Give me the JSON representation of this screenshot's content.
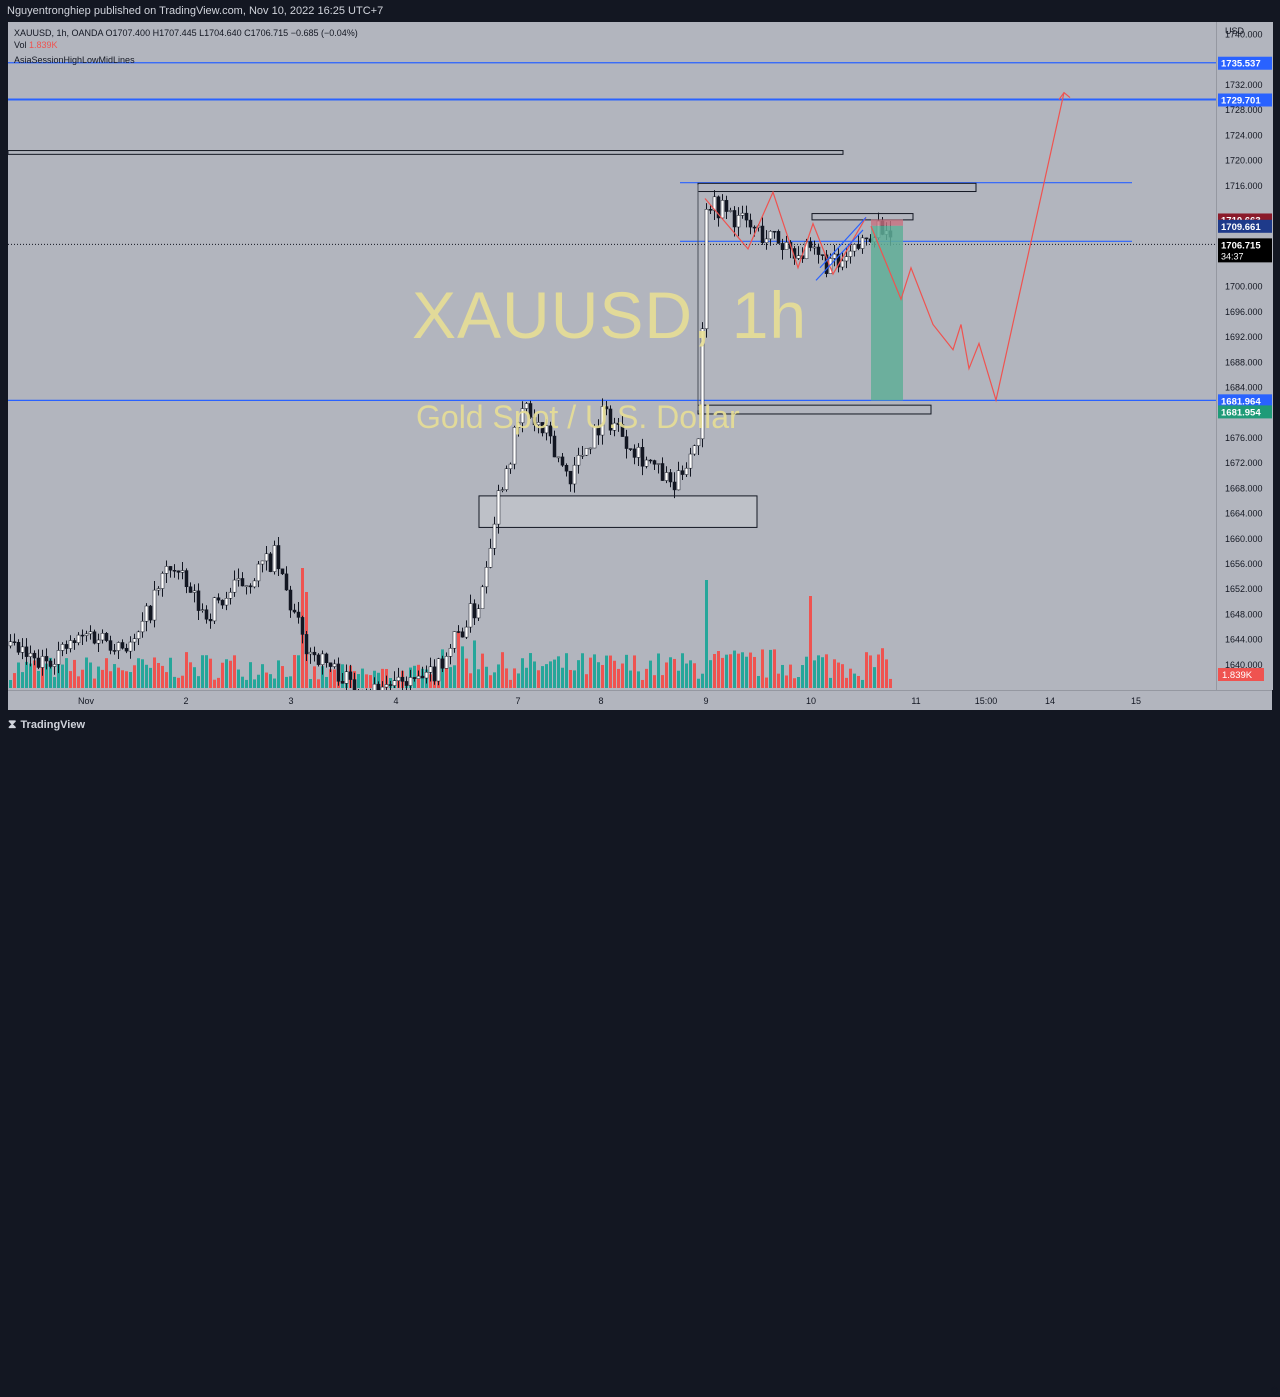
{
  "header": {
    "published": "Nguyentronghiep published on TradingView.com, Nov 10, 2022 16:25 UTC+7"
  },
  "legend": {
    "symbol_line": "XAUUSD, 1h, OANDA  O1707.400  H1707.445  L1704.640  C1706.715  −0.685 (−0.04%)",
    "vol_label": "Vol",
    "vol_value": "1.839K",
    "indicator": "AsiaSessionHighLowMidLines"
  },
  "watermark": {
    "title": "XAUUSD, 1h",
    "subtitle": "Gold Spot / U.S. Dollar"
  },
  "footer": {
    "logo": "TradingView"
  },
  "colors": {
    "background": "#b2b5be",
    "up_candle": "#ffffff",
    "down_candle": "#131722",
    "vol_up": "#26a69a",
    "vol_down": "#ef5350",
    "blue_line": "#2962ff",
    "projection": "#ef5350",
    "watermark": "#e8df96",
    "target_zone": "#5fae98",
    "stop_zone": "#c87080"
  },
  "chart_data": {
    "type": "candlestick",
    "symbol": "XAUUSD",
    "timeframe": "1h",
    "exchange": "OANDA",
    "currency": "USD",
    "ylim": [
      1636,
      1742
    ],
    "y_ticks": [
      "1740.000",
      "1732.000",
      "1728.000",
      "1724.000",
      "1720.000",
      "1716.000",
      "1700.000",
      "1696.000",
      "1692.000",
      "1688.000",
      "1684.000",
      "1676.000",
      "1672.000",
      "1668.000",
      "1664.000",
      "1660.000",
      "1656.000",
      "1652.000",
      "1648.000",
      "1644.000",
      "1640.000"
    ],
    "x_ticks": [
      "Nov",
      "2",
      "3",
      "4",
      "7",
      "8",
      "9",
      "10",
      "11",
      "15:00",
      "14",
      "15"
    ],
    "price_labels": [
      {
        "value": "1735.537",
        "kind": "line"
      },
      {
        "value": "1729.701",
        "kind": "line"
      },
      {
        "value": "1710.663",
        "kind": "stop"
      },
      {
        "value": "1709.661",
        "kind": "entry"
      },
      {
        "value": "1706.715",
        "kind": "last",
        "countdown": "34:37"
      },
      {
        "value": "1681.964",
        "kind": "line"
      },
      {
        "value": "1681.954",
        "kind": "target"
      }
    ],
    "volume_label": "1.839K",
    "last_ohlc": {
      "open": 1707.4,
      "high": 1707.445,
      "low": 1704.64,
      "close": 1706.715,
      "change": -0.685,
      "change_pct": -0.04
    },
    "path_segments": [
      {
        "x0": 0,
        "x1": 30,
        "start": 1643,
        "end": 1640,
        "amp": 3
      },
      {
        "x0": 30,
        "x1": 80,
        "start": 1640,
        "end": 1645,
        "amp": 3
      },
      {
        "x0": 80,
        "x1": 125,
        "start": 1645,
        "end": 1643,
        "amp": 4
      },
      {
        "x0": 125,
        "x1": 160,
        "start": 1643,
        "end": 1656,
        "amp": 4
      },
      {
        "x0": 160,
        "x1": 195,
        "start": 1656,
        "end": 1648,
        "amp": 4
      },
      {
        "x0": 195,
        "x1": 265,
        "start": 1648,
        "end": 1657,
        "amp": 4
      },
      {
        "x0": 265,
        "x1": 295,
        "start": 1657,
        "end": 1643,
        "amp": 4
      },
      {
        "x0": 295,
        "x1": 350,
        "start": 1643,
        "end": 1636,
        "amp": 3
      },
      {
        "x0": 350,
        "x1": 420,
        "start": 1636,
        "end": 1638,
        "amp": 2
      },
      {
        "x0": 420,
        "x1": 470,
        "start": 1638,
        "end": 1650,
        "amp": 4
      },
      {
        "x0": 470,
        "x1": 490,
        "start": 1650,
        "end": 1668,
        "amp": 3
      },
      {
        "x0": 490,
        "x1": 515,
        "start": 1668,
        "end": 1681,
        "amp": 4
      },
      {
        "x0": 515,
        "x1": 560,
        "start": 1681,
        "end": 1670,
        "amp": 5
      },
      {
        "x0": 560,
        "x1": 595,
        "start": 1670,
        "end": 1680,
        "amp": 4
      },
      {
        "x0": 595,
        "x1": 635,
        "start": 1680,
        "end": 1673,
        "amp": 4
      },
      {
        "x0": 635,
        "x1": 665,
        "start": 1673,
        "end": 1668,
        "amp": 3
      },
      {
        "x0": 665,
        "x1": 690,
        "start": 1668,
        "end": 1677,
        "amp": 3
      },
      {
        "x0": 690,
        "x1": 697,
        "start": 1677,
        "end": 1714,
        "amp": 2
      },
      {
        "x0": 697,
        "x1": 745,
        "start": 1714,
        "end": 1709,
        "amp": 4
      },
      {
        "x0": 745,
        "x1": 800,
        "start": 1709,
        "end": 1705,
        "amp": 4
      },
      {
        "x0": 800,
        "x1": 830,
        "start": 1705,
        "end": 1703,
        "amp": 4
      },
      {
        "x0": 830,
        "x1": 870,
        "start": 1703,
        "end": 1710,
        "amp": 3
      },
      {
        "x0": 870,
        "x1": 882,
        "start": 1710,
        "end": 1706.7,
        "amp": 2
      }
    ],
    "volume_profile": [
      {
        "x0": 0,
        "x1": 160,
        "min": 2,
        "max": 8
      },
      {
        "x0": 160,
        "x1": 300,
        "min": 2,
        "max": 9
      },
      {
        "x0": 300,
        "x1": 420,
        "min": 1,
        "max": 6
      },
      {
        "x0": 420,
        "x1": 480,
        "min": 3,
        "max": 14
      },
      {
        "x0": 480,
        "x1": 700,
        "min": 2,
        "max": 9
      },
      {
        "x0": 700,
        "x1": 882,
        "min": 2,
        "max": 10
      }
    ],
    "volume_spikes": [
      {
        "x": 294,
        "value": 30,
        "up": false
      },
      {
        "x": 296,
        "value": 24,
        "up": false
      },
      {
        "x": 697,
        "value": 27,
        "up": true
      },
      {
        "x": 802,
        "value": 23,
        "up": false
      },
      {
        "x": 803,
        "value": 20,
        "up": false
      }
    ],
    "wick_spikes": [
      {
        "x": 295,
        "high": 1661
      },
      {
        "x": 803,
        "high": 1722
      }
    ],
    "horizontal_lines": [
      1735.537,
      1729.701,
      1716.5,
      1707.2,
      1681.964
    ],
    "dotted_line": 1706.715,
    "zones": [
      {
        "x0": 0,
        "x1": 835,
        "top": 1721.6,
        "bottom": 1721.0
      },
      {
        "x0": 690,
        "x1": 968,
        "top": 1716.4,
        "bottom": 1715.1
      },
      {
        "x0": 804,
        "x1": 905,
        "top": 1711.6,
        "bottom": 1710.6
      },
      {
        "x0": 690,
        "x1": 923,
        "top": 1681.2,
        "bottom": 1679.8
      },
      {
        "x0": 471,
        "x1": 749,
        "top": 1666.8,
        "bottom": 1661.8
      }
    ],
    "position": {
      "x0": 863,
      "x1": 895,
      "entry": 1709.661,
      "stop": 1710.663,
      "target": 1681.954
    },
    "projection": [
      {
        "x": 863,
        "y": 1709.6
      },
      {
        "x": 893,
        "y": 1698
      },
      {
        "x": 903,
        "y": 1703
      },
      {
        "x": 925,
        "y": 1694
      },
      {
        "x": 945,
        "y": 1690
      },
      {
        "x": 953,
        "y": 1694
      },
      {
        "x": 961,
        "y": 1687
      },
      {
        "x": 971,
        "y": 1691
      },
      {
        "x": 988,
        "y": 1682
      },
      {
        "x": 1056,
        "y": 1730.8
      }
    ],
    "zigzag_prior": [
      {
        "x": 697,
        "y": 1714
      },
      {
        "x": 740,
        "y": 1706
      },
      {
        "x": 765,
        "y": 1715
      },
      {
        "x": 790,
        "y": 1703
      },
      {
        "x": 805,
        "y": 1710
      },
      {
        "x": 825,
        "y": 1702
      },
      {
        "x": 858,
        "y": 1711
      }
    ],
    "channel": [
      {
        "x0": 812,
        "y0": 1703,
        "x1": 858,
        "y1": 1711
      },
      {
        "x0": 808,
        "y0": 1701,
        "x1": 855,
        "y1": 1709
      }
    ]
  }
}
